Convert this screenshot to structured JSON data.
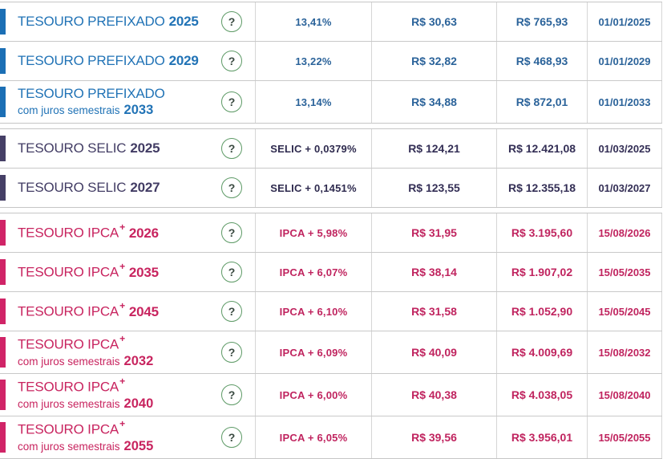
{
  "icons": {
    "question": "?"
  },
  "colors": {
    "prefixado_accent": "#1b6fb5",
    "selic_accent": "#453f66",
    "ipca_accent": "#d02467",
    "help_circle_green": "#5d9a66",
    "divider_gray": "#c9c9c9"
  },
  "table": {
    "sections": [
      {
        "group": "prefixado",
        "rows": [
          {
            "title": "TESOURO PREFIXADO",
            "year": "2025",
            "rate": "13,41%",
            "min_investment": "R$ 30,63",
            "unit_price": "R$ 765,93",
            "maturity": "01/01/2025"
          },
          {
            "title": "TESOURO PREFIXADO",
            "year": "2029",
            "rate": "13,22%",
            "min_investment": "R$ 32,82",
            "unit_price": "R$ 468,93",
            "maturity": "01/01/2029"
          },
          {
            "title": "TESOURO PREFIXADO",
            "subtitle": "com juros semestrais",
            "subyear": "2033",
            "rate": "13,14%",
            "min_investment": "R$ 34,88",
            "unit_price": "R$ 872,01",
            "maturity": "01/01/2033"
          }
        ]
      },
      {
        "group": "selic",
        "rows": [
          {
            "title": "TESOURO SELIC",
            "year": "2025",
            "rate": "SELIC + 0,0379%",
            "min_investment": "R$ 124,21",
            "unit_price": "R$ 12.421,08",
            "maturity": "01/03/2025"
          },
          {
            "title": "TESOURO SELIC",
            "year": "2027",
            "rate": "SELIC + 0,1451%",
            "min_investment": "R$ 123,55",
            "unit_price": "R$ 12.355,18",
            "maturity": "01/03/2027"
          }
        ]
      },
      {
        "group": "ipca",
        "rows": [
          {
            "title": "TESOURO IPCA",
            "sup": "+",
            "year": "2026",
            "rate": "IPCA + 5,98%",
            "min_investment": "R$ 31,95",
            "unit_price": "R$ 3.195,60",
            "maturity": "15/08/2026"
          },
          {
            "title": "TESOURO IPCA",
            "sup": "+",
            "year": "2035",
            "rate": "IPCA + 6,07%",
            "min_investment": "R$ 38,14",
            "unit_price": "R$ 1.907,02",
            "maturity": "15/05/2035"
          },
          {
            "title": "TESOURO IPCA",
            "sup": "+",
            "year": "2045",
            "rate": "IPCA + 6,10%",
            "min_investment": "R$ 31,58",
            "unit_price": "R$ 1.052,90",
            "maturity": "15/05/2045"
          },
          {
            "title": "TESOURO IPCA",
            "sup": "+",
            "subtitle": "com juros semestrais",
            "subyear": "2032",
            "rate": "IPCA + 6,09%",
            "min_investment": "R$ 40,09",
            "unit_price": "R$ 4.009,69",
            "maturity": "15/08/2032"
          },
          {
            "title": "TESOURO IPCA",
            "sup": "+",
            "subtitle": "com juros semestrais",
            "subyear": "2040",
            "rate": "IPCA + 6,00%",
            "min_investment": "R$ 40,38",
            "unit_price": "R$ 4.038,05",
            "maturity": "15/08/2040"
          },
          {
            "title": "TESOURO IPCA",
            "sup": "+",
            "subtitle": "com juros semestrais",
            "subyear": "2055",
            "rate": "IPCA + 6,05%",
            "min_investment": "R$ 39,56",
            "unit_price": "R$ 3.956,01",
            "maturity": "15/05/2055"
          }
        ]
      }
    ]
  }
}
